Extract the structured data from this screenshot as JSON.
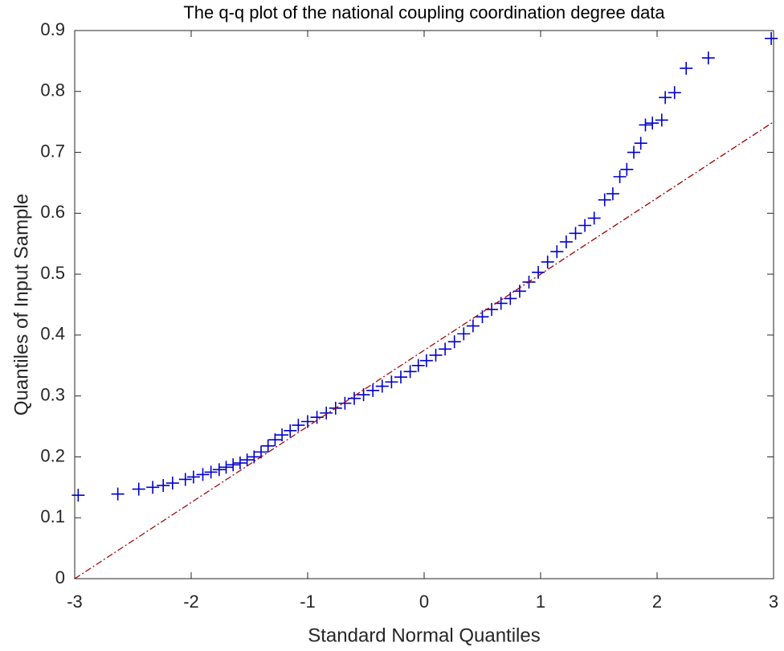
{
  "chart_data": {
    "type": "scatter",
    "title": "The q-q plot of the national coupling coordination degree data",
    "x_label": "Standard Normal Quantiles",
    "y_label": "Quantiles of Input Sample",
    "xlim": [
      -3,
      3
    ],
    "ylim": [
      0,
      0.9
    ],
    "xticks": [
      -3,
      -2,
      -1,
      0,
      1,
      2,
      3
    ],
    "yticks": [
      0,
      0.1,
      0.2,
      0.3,
      0.4,
      0.5,
      0.6,
      0.7,
      0.8,
      0.9
    ],
    "grid": false,
    "series": [
      {
        "color": "#0000cc",
        "marker": "+",
        "x": [
          -2.97,
          -2.63,
          -2.45,
          -2.33,
          -2.24,
          -2.16,
          -2.05,
          -1.98,
          -1.9,
          -1.83,
          -1.76,
          -1.7,
          -1.64,
          -1.58,
          -1.52,
          -1.46,
          -1.4,
          -1.34,
          -1.28,
          -1.22,
          -1.15,
          -1.08,
          -1.0,
          -0.92,
          -0.84,
          -0.76,
          -0.68,
          -0.6,
          -0.52,
          -0.44,
          -0.36,
          -0.28,
          -0.2,
          -0.12,
          -0.05,
          0.02,
          0.1,
          0.18,
          0.26,
          0.34,
          0.42,
          0.5,
          0.58,
          0.66,
          0.74,
          0.82,
          0.9,
          0.98,
          1.06,
          1.14,
          1.22,
          1.3,
          1.38,
          1.46,
          1.55,
          1.62,
          1.68,
          1.74,
          1.8,
          1.86,
          1.9,
          1.96,
          2.04,
          2.07,
          2.15,
          2.25,
          2.44,
          2.98
        ],
        "values": [
          0.137,
          0.139,
          0.147,
          0.15,
          0.153,
          0.157,
          0.163,
          0.167,
          0.171,
          0.175,
          0.179,
          0.183,
          0.187,
          0.19,
          0.195,
          0.2,
          0.208,
          0.218,
          0.228,
          0.236,
          0.243,
          0.252,
          0.258,
          0.265,
          0.272,
          0.28,
          0.288,
          0.296,
          0.302,
          0.309,
          0.316,
          0.323,
          0.331,
          0.34,
          0.35,
          0.358,
          0.367,
          0.377,
          0.389,
          0.402,
          0.415,
          0.43,
          0.442,
          0.452,
          0.46,
          0.472,
          0.487,
          0.503,
          0.52,
          0.537,
          0.553,
          0.567,
          0.58,
          0.592,
          0.622,
          0.632,
          0.66,
          0.672,
          0.7,
          0.715,
          0.745,
          0.748,
          0.753,
          0.79,
          0.798,
          0.838,
          0.855,
          0.887
        ]
      },
      {
        "color": "#a00000",
        "line": "dashdot",
        "x": [
          -3,
          3
        ],
        "values": [
          0,
          0.75
        ]
      }
    ]
  }
}
